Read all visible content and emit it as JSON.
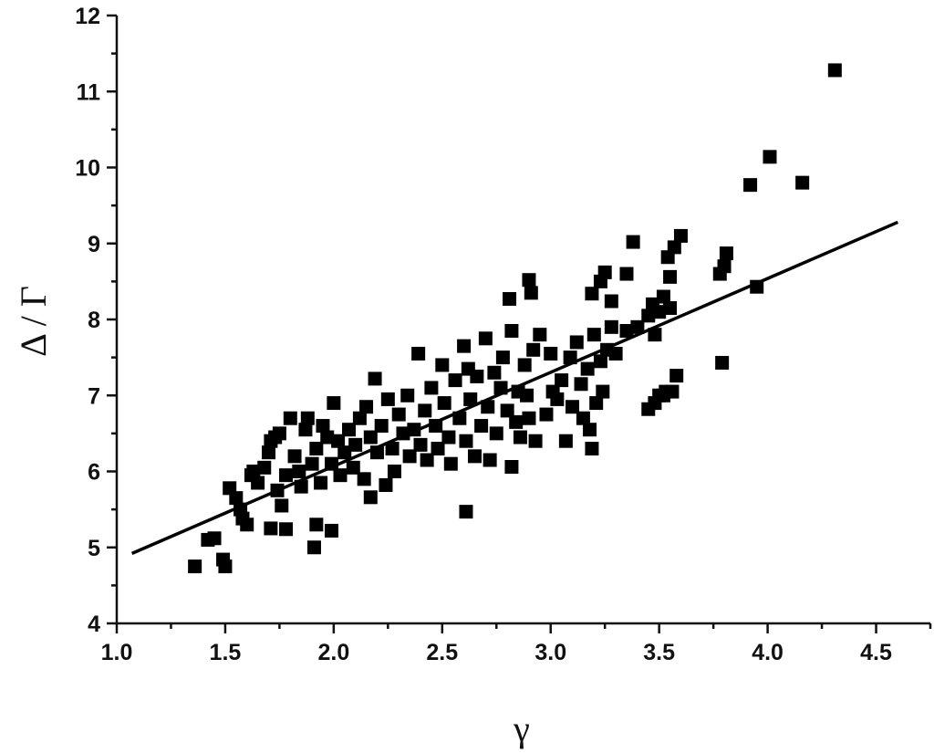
{
  "chart_data": {
    "type": "scatter",
    "x_label": "γ",
    "y_label": "Δ / Γ",
    "xlim": [
      1.0,
      4.75
    ],
    "ylim": [
      4,
      12
    ],
    "xticks": [
      {
        "value": 1,
        "label": "1.0"
      },
      1.5,
      {
        "value": 2,
        "label": "2.0"
      },
      2.5,
      {
        "value": 3,
        "label": "3.0"
      },
      3.5,
      {
        "value": 4,
        "label": "4.0"
      },
      4.5
    ],
    "xminorticks": [
      1.25,
      1.75,
      2.25,
      2.75,
      3.25,
      3.75,
      4.25,
      4.75
    ],
    "yticks": [
      4,
      5,
      6,
      7,
      8,
      9,
      10,
      11,
      12
    ],
    "yminorticks": [
      4.5,
      5.5,
      6.5,
      7.5,
      8.5,
      9.5,
      10.5,
      11.5
    ],
    "series": [
      {
        "style": "marker",
        "color": "#000000",
        "x": [
          4.31,
          4.01,
          3.92,
          4.16,
          3.95,
          3.79,
          3.78,
          3.81,
          3.8,
          3.6,
          3.57,
          3.54,
          3.55,
          3.38,
          3.35,
          3.25,
          3.23,
          3.19,
          3.28,
          2.9,
          2.91,
          2.81,
          2.61,
          2.82,
          1.36,
          1.49,
          1.5,
          1.42,
          1.45,
          1.91,
          1.92,
          1.99,
          1.78,
          1.71,
          2.17,
          3.58,
          3.53,
          3.45,
          3.48,
          3.5,
          1.52,
          1.55,
          1.57,
          1.58,
          1.6,
          1.62,
          1.63,
          1.65,
          1.68,
          1.7,
          1.71,
          1.73,
          1.75,
          1.74,
          1.76,
          1.78,
          1.8,
          1.82,
          1.84,
          1.85,
          1.87,
          1.88,
          1.9,
          1.92,
          1.94,
          1.95,
          1.97,
          1.99,
          2.0,
          2.02,
          2.03,
          2.05,
          2.07,
          2.09,
          2.1,
          2.12,
          2.14,
          2.15,
          2.17,
          2.19,
          2.2,
          2.22,
          2.24,
          2.25,
          2.27,
          2.28,
          2.3,
          2.32,
          2.34,
          2.35,
          2.37,
          2.39,
          2.4,
          2.42,
          2.43,
          2.45,
          2.47,
          2.48,
          2.5,
          2.51,
          2.53,
          2.54,
          2.56,
          2.58,
          2.6,
          2.61,
          2.62,
          2.63,
          2.65,
          2.66,
          2.68,
          2.7,
          2.71,
          2.72,
          2.74,
          2.75,
          2.77,
          2.78,
          2.8,
          2.82,
          2.84,
          2.85,
          2.86,
          2.88,
          2.89,
          2.9,
          2.92,
          2.93,
          2.95,
          2.98,
          3.0,
          3.01,
          3.03,
          3.05,
          3.07,
          3.09,
          3.1,
          3.12,
          3.14,
          3.15,
          3.17,
          3.18,
          3.19,
          3.2,
          3.21,
          3.23,
          3.24,
          3.26,
          3.28,
          3.3,
          3.35,
          3.4,
          3.45,
          3.47,
          3.48,
          3.5,
          3.52,
          3.55,
          3.52,
          3.56
        ],
        "values": [
          11.28,
          10.14,
          9.77,
          9.8,
          8.43,
          7.43,
          8.6,
          8.87,
          8.7,
          9.1,
          8.95,
          8.82,
          8.56,
          9.02,
          8.6,
          8.62,
          8.5,
          8.34,
          8.24,
          8.52,
          8.35,
          8.27,
          5.47,
          6.06,
          4.75,
          4.84,
          4.75,
          5.1,
          5.12,
          5.0,
          5.3,
          5.22,
          5.24,
          5.25,
          5.66,
          7.26,
          7.05,
          6.82,
          6.9,
          7.0,
          5.78,
          5.65,
          5.5,
          5.38,
          5.3,
          5.95,
          6.0,
          5.85,
          6.05,
          6.25,
          6.4,
          6.45,
          6.5,
          5.75,
          5.55,
          5.95,
          6.7,
          6.2,
          6.0,
          5.8,
          6.55,
          6.7,
          6.1,
          6.3,
          5.85,
          6.6,
          6.45,
          6.1,
          6.9,
          6.4,
          5.95,
          6.25,
          6.55,
          6.05,
          6.35,
          6.7,
          5.9,
          6.85,
          6.45,
          7.22,
          6.25,
          6.6,
          5.82,
          6.95,
          6.3,
          6.0,
          6.75,
          6.5,
          7.0,
          6.2,
          6.55,
          7.55,
          6.35,
          6.8,
          6.15,
          7.1,
          6.6,
          6.3,
          7.4,
          6.9,
          6.45,
          6.1,
          7.2,
          6.7,
          7.65,
          6.4,
          7.35,
          6.95,
          6.2,
          7.25,
          6.6,
          7.75,
          6.85,
          6.15,
          7.3,
          6.5,
          7.1,
          7.5,
          6.8,
          7.85,
          6.65,
          7.05,
          6.45,
          7.4,
          7.0,
          6.7,
          7.6,
          6.4,
          7.8,
          6.75,
          7.55,
          7.05,
          6.95,
          7.2,
          6.4,
          7.5,
          6.85,
          7.7,
          7.15,
          6.7,
          7.35,
          6.55,
          6.3,
          7.8,
          6.9,
          7.45,
          7.05,
          7.6,
          7.9,
          7.55,
          7.85,
          7.9,
          8.05,
          8.2,
          7.8,
          8.1,
          8.3,
          8.15,
          7.0,
          7.05
        ]
      },
      {
        "style": "line",
        "color": "#000000",
        "x": [
          1.07,
          4.6
        ],
        "values": [
          4.92,
          9.28
        ]
      }
    ]
  }
}
